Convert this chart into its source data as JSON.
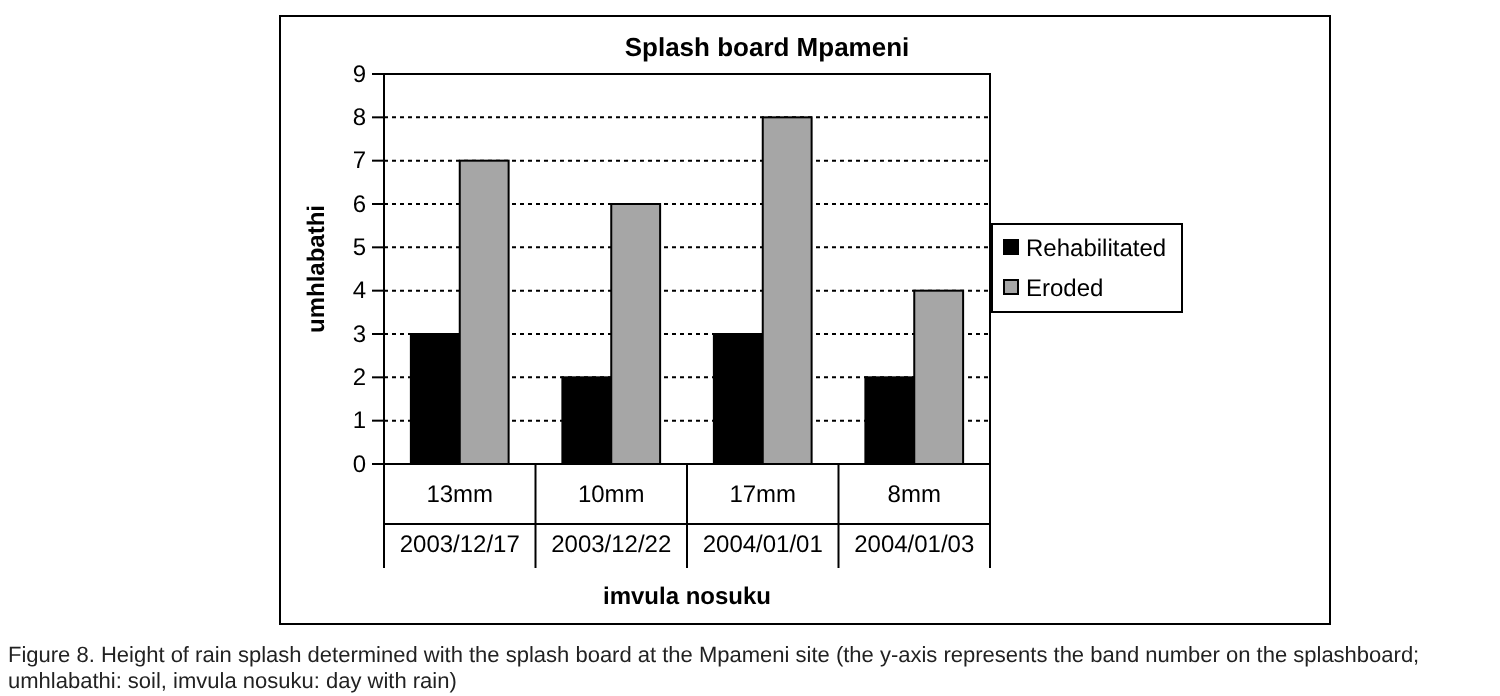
{
  "chart_data": {
    "type": "bar",
    "title": "Splash board Mpameni",
    "xlabel": "imvula nosuku",
    "ylabel": "umhlabathi",
    "categories": [
      "13mm\n2003/12/17",
      "10mm\n2003/12/22",
      "17mm\n2004/01/01",
      "8mm\n2004/01/03"
    ],
    "series": [
      {
        "name": "Rehabilitated",
        "color": "#000000",
        "values": [
          3,
          2,
          3,
          2
        ]
      },
      {
        "name": "Eroded",
        "color": "#a6a6a6",
        "values": [
          7,
          6,
          8,
          4
        ]
      }
    ],
    "ylim": [
      0,
      9
    ],
    "yticks": [
      0,
      1,
      2,
      3,
      4,
      5,
      6,
      7,
      8,
      9
    ],
    "grid": "y",
    "legend": "right",
    "annotations": [
      "Figure 8. Height of rain splash determined with the splash board at the Mpameni site (the y-axis represents the band number on the splashboard; umhlabathi: soil, imvula nosuku: day with rain)"
    ]
  }
}
